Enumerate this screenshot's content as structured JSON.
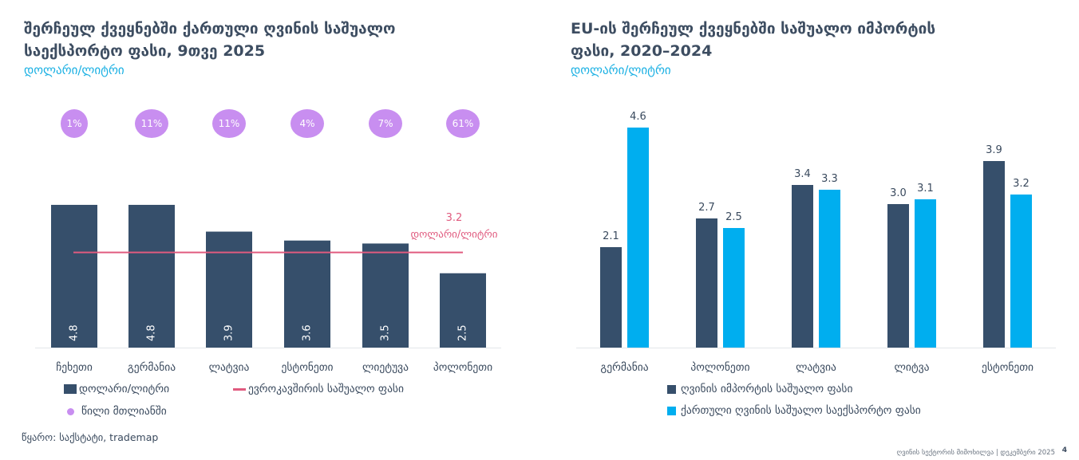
{
  "left_panel": {
    "title_line1": "შერჩეულ ქვეყნებში ქართული ღვინის საშუალო",
    "title_line2": "საექსპორტო ფასი, 9თვე 2025",
    "subtitle": "დოლარი/ლიტრი",
    "eu_line_label_value": "3.2",
    "eu_line_label_unit": "დოლარი/ლიტრი",
    "legend": {
      "bars": "დოლარი/ლიტრი",
      "line": "ევროკავშირის საშუალო ფასი",
      "bubbles": "წილი მთლიანში"
    }
  },
  "right_panel": {
    "title_line1": "EU-ის შერჩეულ ქვეყნებში საშუალო იმპორტის",
    "title_line2": "ფასი, 2020–2024",
    "subtitle": "დოლარი/ლიტრი",
    "legend": {
      "series1": "ღვინის იმპორტის საშუალო ფასი",
      "series2": "ქართული ღვინის საშუალო საექსპორტო ფასი"
    }
  },
  "source": "წყარო: საქსტატი, trademap",
  "footer": "ღვინის სექტორის მიმოხილვა | დეკემბერი 2025",
  "page_number": "4",
  "colors": {
    "dark_bar": "#364f6b",
    "light_bar": "#00aeef",
    "eu_line": "#e05b7f",
    "bubble": "#c88ef0",
    "title": "#3d4d61",
    "subtitle": "#1ab0e3"
  },
  "chart_data": [
    {
      "type": "bar",
      "title": "შერჩეულ ქვეყნებში ქართული ღვინის საშუალო საექსპორტო ფასი, 9თვე 2025",
      "subtitle": "დოლარი/ლიტრი",
      "categories": [
        "ჩეხეთი",
        "გერმანია",
        "ლატვია",
        "ესტონეთი",
        "ლიეტუვა",
        "პოლონეთი"
      ],
      "series": [
        {
          "name": "დოლარი/ლიტრი",
          "values": [
            4.8,
            4.8,
            3.9,
            3.6,
            3.5,
            2.5
          ],
          "labels": [
            "4.8",
            "4.8",
            "3.9",
            "3.6",
            "3.5",
            "2.5"
          ]
        }
      ],
      "reference_line": {
        "name": "ევროკავშირის საშუალო ფასი",
        "value": 3.2,
        "label": "3.2 დოლარი/ლიტრი"
      },
      "share_bubbles": {
        "name": "წილი მთლიანში",
        "values": [
          "1%",
          "11%",
          "11%",
          "4%",
          "7%",
          "61%"
        ]
      },
      "ylim": [
        0,
        4.8
      ],
      "grid": false,
      "legend": "bottom"
    },
    {
      "type": "bar",
      "title": "EU-ის შერჩეულ ქვეყნებში საშუალო იმპორტის ფასი, 2020–2024",
      "subtitle": "დოლარი/ლიტრი",
      "categories": [
        "გერმანია",
        "პოლონეთი",
        "ლატვია",
        "ლიტვა",
        "ესტონეთი"
      ],
      "series": [
        {
          "name": "ღვინის იმპორტის საშუალო ფასი",
          "values": [
            2.1,
            2.7,
            3.4,
            3.0,
            3.9
          ],
          "labels": [
            "2.1",
            "2.7",
            "3.4",
            "3.0",
            "3.9"
          ]
        },
        {
          "name": "ქართული ღვინის საშუალო საექსპორტო ფასი",
          "values": [
            4.6,
            2.5,
            3.3,
            3.1,
            3.2
          ],
          "labels": [
            "4.6",
            "2.5",
            "3.3",
            "3.1",
            "3.2"
          ]
        }
      ],
      "ylim": [
        0,
        4.6
      ],
      "grid": false,
      "legend": "bottom"
    }
  ]
}
